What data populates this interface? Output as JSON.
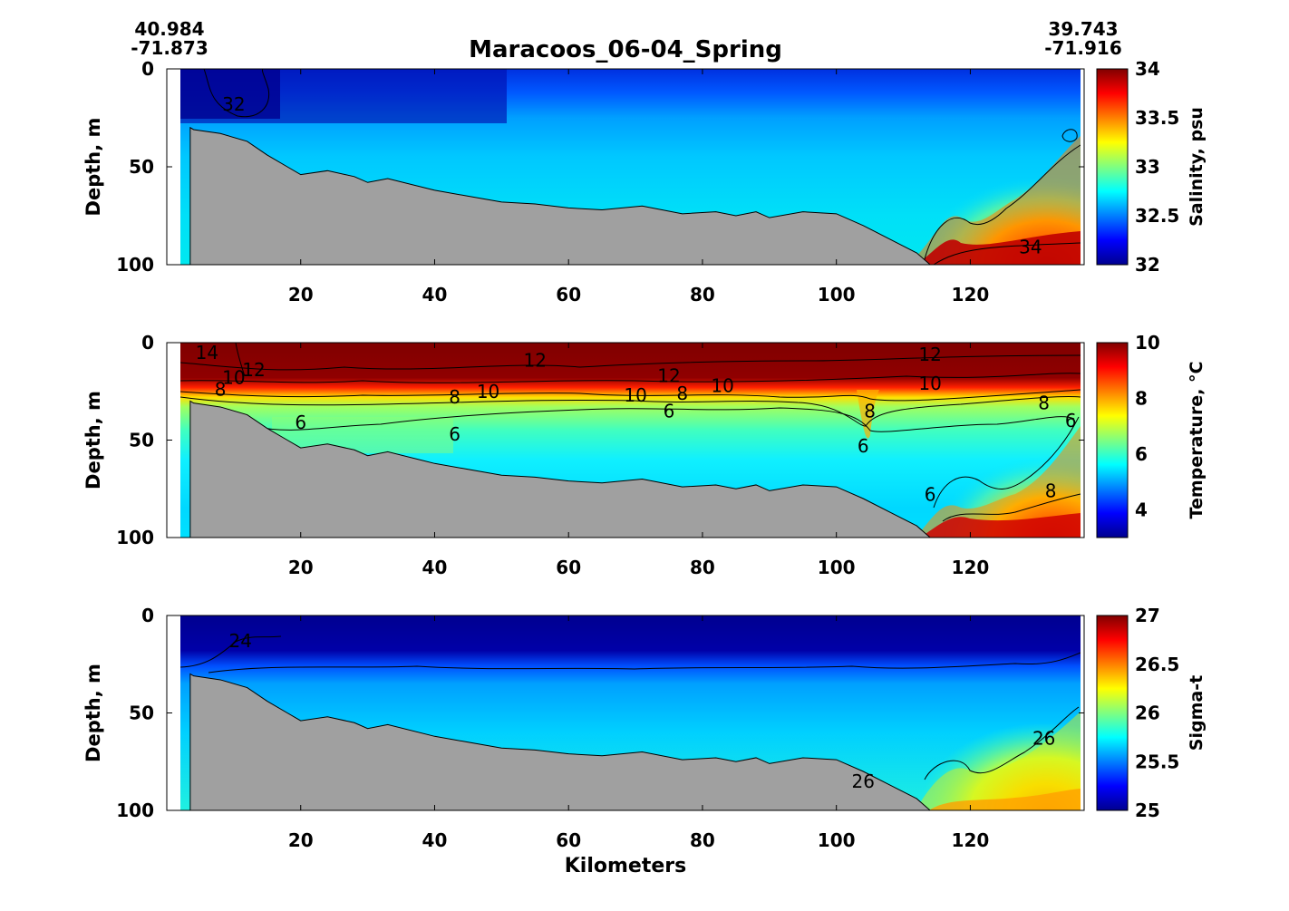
{
  "figure": {
    "title": "Maracoos_06-04_Spring",
    "start_coord": {
      "lat": "40.984",
      "lon": "-71.873"
    },
    "end_coord": {
      "lat": "39.743",
      "lon": "-71.916"
    },
    "xlabel": "Kilometers"
  },
  "chart_data": [
    {
      "type": "heatmap",
      "id": "salinity",
      "ylabel": "Depth, m",
      "xlim": [
        0,
        137
      ],
      "ylim": [
        0,
        100
      ],
      "x_ticks": [
        "20",
        "40",
        "60",
        "80",
        "100",
        "120"
      ],
      "y_ticks": [
        "0",
        "50",
        "100"
      ],
      "colorbar": {
        "label": "Salinity, psu",
        "min": 32,
        "max": 34,
        "ticks": [
          "32",
          "32.5",
          "33",
          "33.5",
          "34"
        ]
      },
      "contour_labels": [
        {
          "text": "32",
          "x": 10,
          "y": 18
        },
        {
          "text": "34",
          "x": 129,
          "y": 91
        }
      ],
      "bands": [
        {
          "level": 32.0,
          "surface_depth": [
            [
              2,
              0
            ],
            [
              137,
              0
            ]
          ],
          "color_note": "fresh surface"
        },
        {
          "level": 32.8,
          "depth_range": [
            20,
            80
          ],
          "color_note": "mid-column"
        },
        {
          "level": 34.0,
          "depth_range": [
            80,
            100
          ],
          "x_range": [
            112,
            137
          ],
          "color_note": "saline bottom"
        }
      ]
    },
    {
      "type": "heatmap",
      "id": "temperature",
      "ylabel": "Depth, m",
      "xlim": [
        0,
        137
      ],
      "ylim": [
        0,
        100
      ],
      "x_ticks": [
        "20",
        "40",
        "60",
        "80",
        "100",
        "120"
      ],
      "y_ticks": [
        "0",
        "50",
        "100"
      ],
      "colorbar": {
        "label": "Temperature, °C",
        "min": 3,
        "max": 10,
        "ticks": [
          "4",
          "6",
          "8",
          "10"
        ]
      },
      "contour_labels": [
        {
          "text": "14",
          "x": 6,
          "y": 5
        },
        {
          "text": "12",
          "x": 13,
          "y": 14
        },
        {
          "text": "10",
          "x": 10,
          "y": 18
        },
        {
          "text": "8",
          "x": 8,
          "y": 24
        },
        {
          "text": "12",
          "x": 55,
          "y": 9
        },
        {
          "text": "12",
          "x": 75,
          "y": 17
        },
        {
          "text": "12",
          "x": 114,
          "y": 6
        },
        {
          "text": "10",
          "x": 48,
          "y": 25
        },
        {
          "text": "10",
          "x": 70,
          "y": 27
        },
        {
          "text": "10",
          "x": 83,
          "y": 22
        },
        {
          "text": "10",
          "x": 114,
          "y": 21
        },
        {
          "text": "8",
          "x": 43,
          "y": 28
        },
        {
          "text": "8",
          "x": 77,
          "y": 26
        },
        {
          "text": "8",
          "x": 105,
          "y": 35
        },
        {
          "text": "8",
          "x": 131,
          "y": 31
        },
        {
          "text": "8",
          "x": 132,
          "y": 76
        },
        {
          "text": "6",
          "x": 20,
          "y": 41
        },
        {
          "text": "6",
          "x": 43,
          "y": 47
        },
        {
          "text": "6",
          "x": 75,
          "y": 35
        },
        {
          "text": "6",
          "x": 104,
          "y": 53
        },
        {
          "text": "6",
          "x": 114,
          "y": 78
        },
        {
          "text": "6",
          "x": 135,
          "y": 40
        }
      ]
    },
    {
      "type": "heatmap",
      "id": "sigma_t",
      "ylabel": "Depth, m",
      "xlim": [
        0,
        137
      ],
      "ylim": [
        0,
        100
      ],
      "x_ticks": [
        "20",
        "40",
        "60",
        "80",
        "100",
        "120"
      ],
      "y_ticks": [
        "0",
        "50",
        "100"
      ],
      "colorbar": {
        "label": "Sigma-t",
        "min": 25,
        "max": 27,
        "ticks": [
          "25",
          "25.5",
          "26",
          "26.5",
          "27"
        ]
      },
      "contour_labels": [
        {
          "text": "24",
          "x": 11,
          "y": 13
        },
        {
          "text": "26",
          "x": 131,
          "y": 63
        },
        {
          "text": "26",
          "x": 104,
          "y": 85
        }
      ]
    }
  ],
  "bathymetry": {
    "color": "#a0a0a0",
    "km": [
      3.5,
      4,
      8,
      12,
      15,
      18,
      20,
      24,
      28,
      30,
      33,
      40,
      45,
      50,
      55,
      60,
      65,
      71,
      77,
      82,
      85,
      88,
      90,
      95,
      100,
      104,
      108,
      112,
      114
    ],
    "depth": [
      30,
      31,
      33,
      37,
      44,
      50,
      54,
      52,
      55,
      58,
      56,
      62,
      65,
      68,
      69,
      71,
      72,
      70,
      74,
      73,
      75,
      73,
      76,
      73,
      74,
      80,
      87,
      94,
      100
    ]
  }
}
